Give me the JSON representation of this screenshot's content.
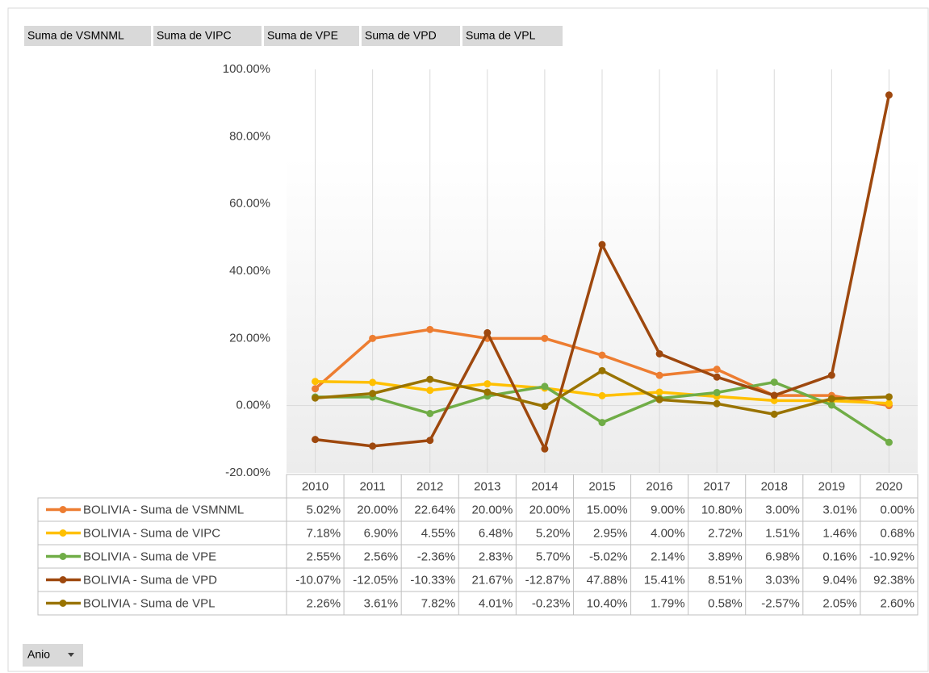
{
  "field_buttons": [
    "Suma de VSMNML",
    "Suma de VIPC",
    "Suma de VPE",
    "Suma de VPD",
    "Suma de VPL"
  ],
  "row_field": "Anio",
  "chart_data": {
    "type": "line",
    "categories": [
      "2010",
      "2011",
      "2012",
      "2013",
      "2014",
      "2015",
      "2016",
      "2017",
      "2018",
      "2019",
      "2020"
    ],
    "ylim": [
      -20,
      100
    ],
    "yticks": [
      {
        "value": -20,
        "label": "-20.00%"
      },
      {
        "value": 0,
        "label": "0.00%"
      },
      {
        "value": 20,
        "label": "20.00%"
      },
      {
        "value": 40,
        "label": "40.00%"
      },
      {
        "value": 60,
        "label": "60.00%"
      },
      {
        "value": 80,
        "label": "80.00%"
      },
      {
        "value": 100,
        "label": "100.00%"
      }
    ],
    "grid": true,
    "series": [
      {
        "name": "BOLIVIA - Suma de VSMNML",
        "color": "#ed7d31",
        "values": [
          5.02,
          20.0,
          22.64,
          20.0,
          20.0,
          15.0,
          9.0,
          10.8,
          3.0,
          3.01,
          0.0
        ],
        "value_labels": [
          "5.02%",
          "20.00%",
          "22.64%",
          "20.00%",
          "20.00%",
          "15.00%",
          "9.00%",
          "10.80%",
          "3.00%",
          "3.01%",
          "0.00%"
        ]
      },
      {
        "name": "BOLIVIA - Suma de VIPC",
        "color": "#ffc000",
        "values": [
          7.18,
          6.9,
          4.55,
          6.48,
          5.2,
          2.95,
          4.0,
          2.72,
          1.51,
          1.46,
          0.68
        ],
        "value_labels": [
          "7.18%",
          "6.90%",
          "4.55%",
          "6.48%",
          "5.20%",
          "2.95%",
          "4.00%",
          "2.72%",
          "1.51%",
          "1.46%",
          "0.68%"
        ]
      },
      {
        "name": "BOLIVIA - Suma de VPE",
        "color": "#70ad47",
        "values": [
          2.55,
          2.56,
          -2.36,
          2.83,
          5.7,
          -5.02,
          2.14,
          3.89,
          6.98,
          0.16,
          -10.92
        ],
        "value_labels": [
          "2.55%",
          "2.56%",
          "-2.36%",
          "2.83%",
          "5.70%",
          "-5.02%",
          "2.14%",
          "3.89%",
          "6.98%",
          "0.16%",
          "-10.92%"
        ]
      },
      {
        "name": "BOLIVIA - Suma de VPD",
        "color": "#9e480e",
        "values": [
          -10.07,
          -12.05,
          -10.33,
          21.67,
          -12.87,
          47.88,
          15.41,
          8.51,
          3.03,
          9.04,
          92.38
        ],
        "value_labels": [
          "-10.07%",
          "-12.05%",
          "-10.33%",
          "21.67%",
          "-12.87%",
          "47.88%",
          "15.41%",
          "8.51%",
          "3.03%",
          "9.04%",
          "92.38%"
        ]
      },
      {
        "name": "BOLIVIA - Suma de VPL",
        "color": "#997300",
        "values": [
          2.26,
          3.61,
          7.82,
          4.01,
          -0.23,
          10.4,
          1.79,
          0.58,
          -2.57,
          2.05,
          2.6
        ],
        "value_labels": [
          "2.26%",
          "3.61%",
          "7.82%",
          "4.01%",
          "-0.23%",
          "10.40%",
          "1.79%",
          "0.58%",
          "-2.57%",
          "2.05%",
          "2.60%"
        ]
      }
    ]
  }
}
